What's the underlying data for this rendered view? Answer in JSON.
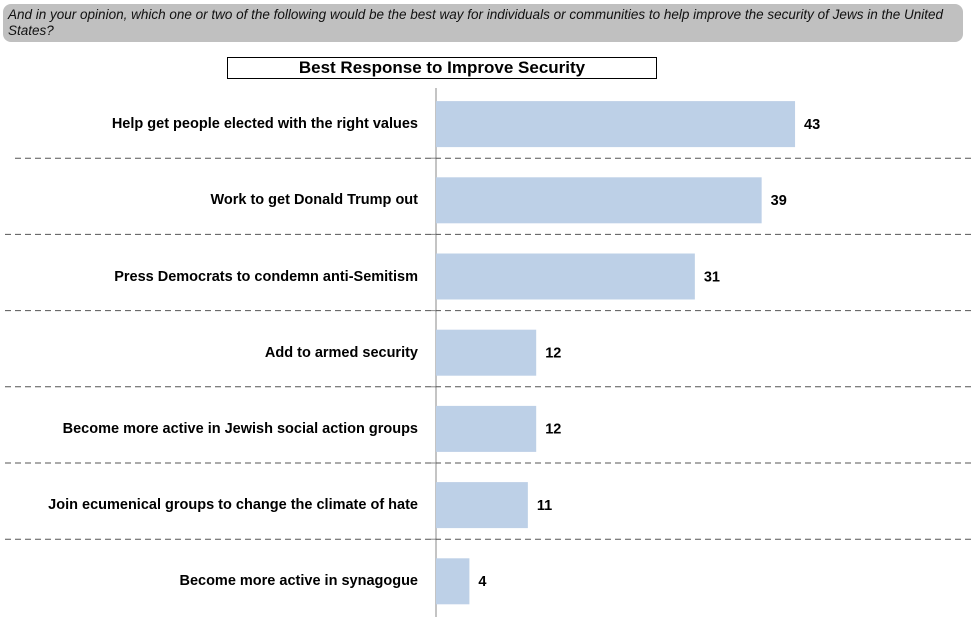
{
  "header": {
    "question": "And in your opinion, which one or two of the following would be the best way for individuals or communities to help improve the security of Jews in the United States?"
  },
  "chart_data": {
    "type": "bar",
    "orientation": "horizontal",
    "title": "Best Response to Improve Security",
    "categories": [
      "Help get people elected with the right values",
      "Work to get Donald Trump out",
      "Press Democrats to condemn anti-Semitism",
      "Add to armed security",
      "Become more active in Jewish social action groups",
      "Join ecumenical groups to change the climate of hate",
      "Become more active in synagogue"
    ],
    "values": [
      43,
      39,
      31,
      12,
      12,
      11,
      4
    ],
    "color": "#bdd0e7"
  }
}
